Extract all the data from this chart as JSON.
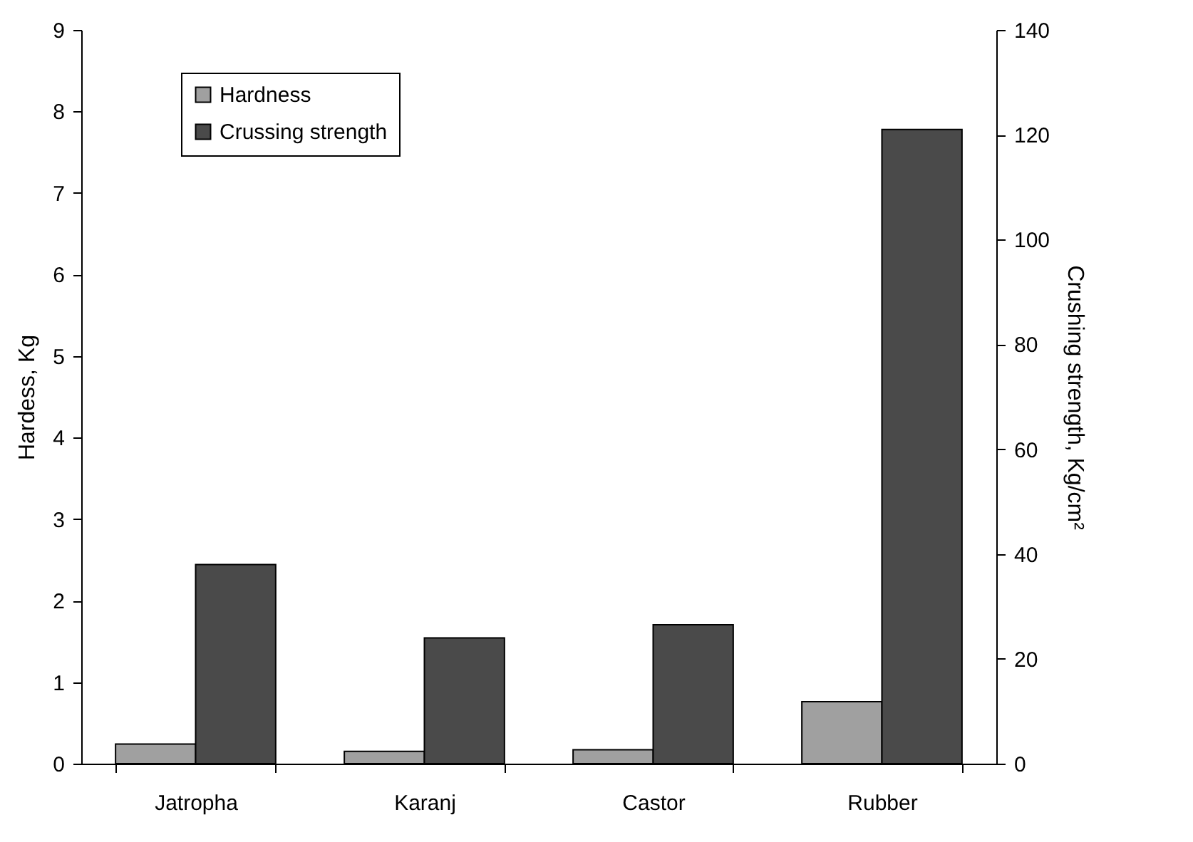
{
  "chart_data": {
    "type": "bar",
    "ylabel": "Hardess, Kg",
    "y2label": "Crushing strength, Kg/cm²",
    "categories": [
      "Jatropha",
      "Karanj",
      "Castor",
      "Rubber"
    ],
    "series": [
      {
        "name": "Hardness",
        "color": "#a0a0a0",
        "values": [
          0.24,
          0.15,
          0.17,
          0.76
        ]
      },
      {
        "name": "Crussing strength",
        "color": "#4a4a4a",
        "values": [
          38,
          24,
          26.5,
          121
        ],
        "axis": "y2"
      }
    ],
    "ylim": [
      0,
      9
    ],
    "yticks": [
      0,
      1,
      2,
      3,
      4,
      5,
      6,
      7,
      8,
      9
    ],
    "y2lim": [
      0,
      140
    ],
    "y2ticks": [
      0,
      20,
      40,
      60,
      80,
      100,
      120,
      140
    ],
    "legend": "top left",
    "grid": false
  }
}
